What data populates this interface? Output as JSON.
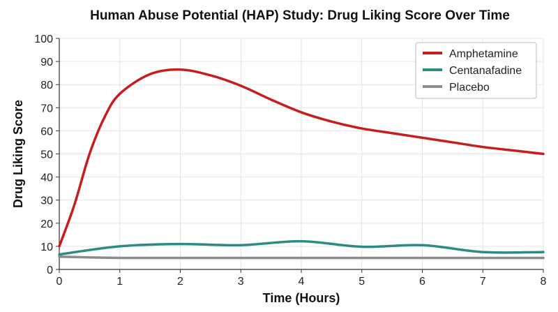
{
  "chart_data": {
    "type": "line",
    "title": "Human Abuse Potential (HAP) Study: Drug Liking Score Over Time",
    "xlabel": "Time (Hours)",
    "ylabel": "Drug Liking Score",
    "xlim": [
      0,
      8
    ],
    "ylim": [
      0,
      100
    ],
    "xticks": [
      0,
      1,
      2,
      3,
      4,
      5,
      6,
      7,
      8
    ],
    "yticks": [
      0,
      10,
      20,
      30,
      40,
      50,
      60,
      70,
      80,
      90,
      100
    ],
    "grid": true,
    "legend_position": "top-right",
    "series": [
      {
        "name": "Amphetamine",
        "color": "#c41e1e",
        "x": [
          0,
          0.25,
          0.5,
          0.75,
          1,
          1.5,
          2,
          2.5,
          3,
          3.5,
          4,
          4.5,
          5,
          5.5,
          6,
          6.5,
          7,
          7.5,
          8
        ],
        "y": [
          10,
          28,
          50,
          66,
          76,
          84.5,
          86.5,
          84,
          79.5,
          73.5,
          68,
          64,
          61,
          59,
          57,
          55,
          53,
          51.5,
          50
        ]
      },
      {
        "name": "Centanafadine",
        "color": "#2e8b84",
        "x": [
          0,
          1,
          2,
          3,
          4,
          5,
          6,
          7,
          8
        ],
        "y": [
          6.5,
          10,
          11,
          10.5,
          12.2,
          9.8,
          10.5,
          7.5,
          7.5
        ]
      },
      {
        "name": "Placebo",
        "color": "#8c8c8c",
        "x": [
          0,
          1,
          2,
          3,
          4,
          5,
          6,
          7,
          8
        ],
        "y": [
          5.5,
          5,
          5,
          5,
          5,
          5,
          5,
          5,
          5
        ]
      }
    ]
  }
}
